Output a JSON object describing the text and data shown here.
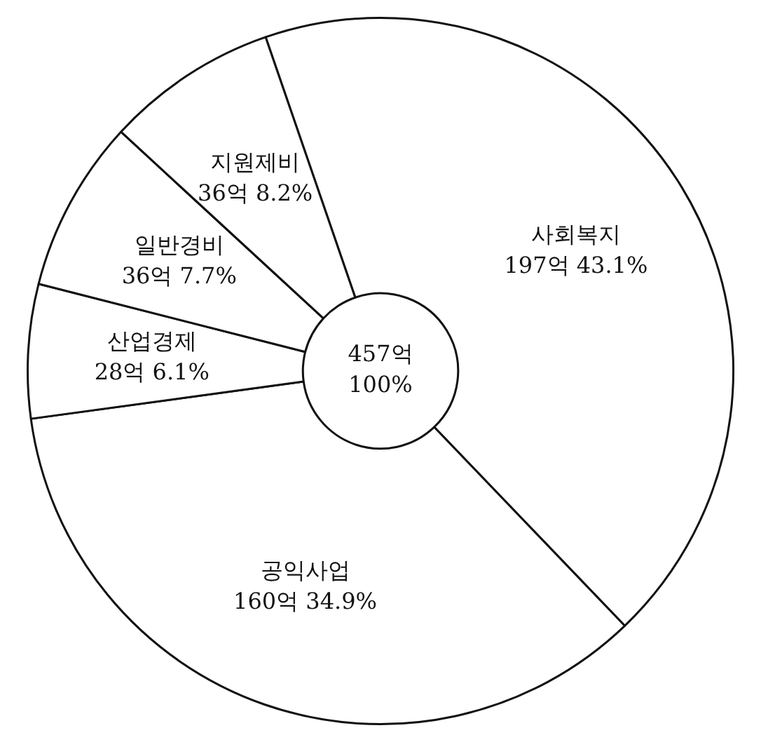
{
  "chart_data": {
    "type": "donut",
    "categories": [
      "사회복지",
      "공익사업",
      "산업경제",
      "일반경비",
      "지원제비"
    ],
    "values": [
      197,
      160,
      28,
      36,
      36
    ],
    "value_labels": [
      "197억 43.1%",
      "160억 34.9%",
      "28억 6.1%",
      "36억 7.7%",
      "36억 8.2%"
    ],
    "colors": [
      "#ffffff",
      "#ffffff",
      "#ffffff",
      "#ffffff",
      "#ffffff"
    ],
    "annotations": [
      "457억",
      "100%"
    ],
    "legend": false
  }
}
